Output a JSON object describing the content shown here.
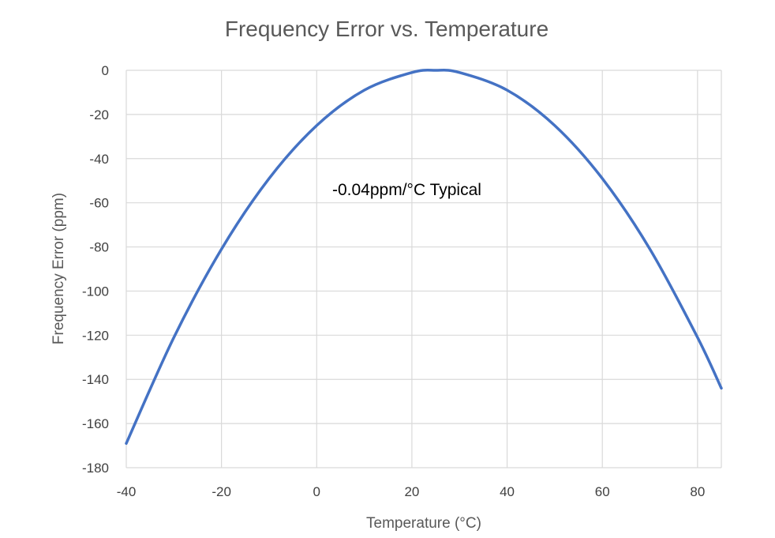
{
  "chart_data": {
    "type": "line",
    "title": "Frequency Error vs. Temperature",
    "xlabel": "Temperature (°C)",
    "ylabel": "Frequency Error (ppm)",
    "xlim": [
      -40,
      85
    ],
    "ylim": [
      -180,
      0
    ],
    "xticks": [
      -40,
      -20,
      0,
      20,
      40,
      60,
      80
    ],
    "yticks": [
      0,
      -20,
      -40,
      -60,
      -80,
      -100,
      -120,
      -140,
      -160,
      -180
    ],
    "grid": true,
    "annotation": "-0.04ppm/°C Typical",
    "series": [
      {
        "name": "Frequency Error",
        "color": "#4472c4",
        "x": [
          -40,
          -30,
          -20,
          -10,
          0,
          10,
          20,
          25,
          30,
          40,
          50,
          60,
          70,
          80,
          85
        ],
        "y": [
          -169,
          -121,
          -81,
          -49,
          -25,
          -9,
          -1,
          0,
          -1,
          -9,
          -25,
          -49,
          -81,
          -121,
          -144
        ]
      }
    ]
  }
}
